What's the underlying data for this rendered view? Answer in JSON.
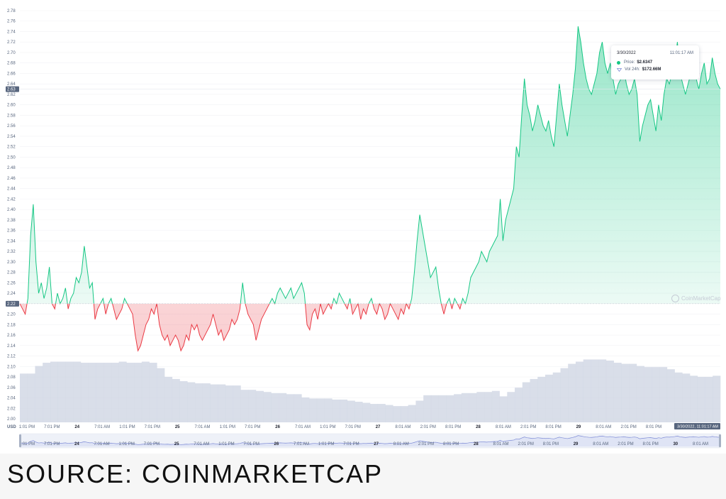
{
  "chart_data": {
    "type": "area",
    "title": "",
    "ylabel": "",
    "currency_label": "USD",
    "ylim": [
      2.0,
      2.78
    ],
    "y_ticks": [
      2.0,
      2.02,
      2.04,
      2.06,
      2.08,
      2.1,
      2.12,
      2.14,
      2.16,
      2.18,
      2.2,
      2.22,
      2.24,
      2.26,
      2.28,
      2.3,
      2.32,
      2.34,
      2.36,
      2.38,
      2.4,
      2.42,
      2.44,
      2.46,
      2.48,
      2.5,
      2.52,
      2.54,
      2.56,
      2.58,
      2.6,
      2.62,
      2.64,
      2.66,
      2.68,
      2.7,
      2.72,
      2.74,
      2.76,
      2.78
    ],
    "baseline_value": 2.22,
    "current_value": 2.63,
    "baseline_label": "2.22",
    "current_label": "2.63",
    "x_ticks": [
      "1:01 PM",
      "7:01 PM",
      "24",
      "7:01 AM",
      "1:01 PM",
      "7:01 PM",
      "25",
      "7:01 AM",
      "1:01 PM",
      "7:01 PM",
      "26",
      "7:01 AM",
      "1:01 PM",
      "7:01 PM",
      "27",
      "8:01 AM",
      "2:01 PM",
      "8:01 PM",
      "28",
      "8:01 AM",
      "2:01 PM",
      "8:01 PM",
      "29",
      "8:01 AM",
      "2:01 PM",
      "8:01 PM"
    ],
    "nav_ticks": [
      "1:01 PM",
      "7:01 PM",
      "24",
      "7:01 AM",
      "1:01 PM",
      "7:01 PM",
      "25",
      "7:01 AM",
      "1:01 PM",
      "7:01 PM",
      "26",
      "7:01 AM",
      "1:01 PM",
      "7:01 PM",
      "27",
      "8:01 AM",
      "2:01 PM",
      "8:01 PM",
      "28",
      "8:01 AM",
      "2:01 PM",
      "8:01 PM",
      "29",
      "8:01 AM",
      "2:01 PM",
      "8:01 PM",
      "30",
      "8:01 AM"
    ],
    "current_time_label": "3/30/2022, 11:01:17 AM",
    "colors": {
      "up": "#16c784",
      "down": "#ea3943",
      "volume": "#cfd6e4",
      "navigator_line": "#7d8ad6"
    },
    "series": [
      {
        "values": [
          2.22,
          2.21,
          2.2,
          2.23,
          2.35,
          2.41,
          2.3,
          2.24,
          2.26,
          2.23,
          2.25,
          2.29,
          2.22,
          2.21,
          2.24,
          2.22,
          2.23,
          2.25,
          2.21,
          2.23,
          2.24,
          2.27,
          2.26,
          2.28,
          2.33,
          2.29,
          2.25,
          2.26,
          2.19,
          2.21,
          2.22,
          2.23,
          2.2,
          2.22,
          2.23,
          2.21,
          2.19,
          2.2,
          2.21,
          2.23,
          2.22,
          2.21,
          2.2,
          2.16,
          2.13,
          2.14,
          2.16,
          2.18,
          2.19,
          2.21,
          2.2,
          2.22,
          2.18,
          2.16,
          2.15,
          2.16,
          2.14,
          2.15,
          2.16,
          2.15,
          2.13,
          2.14,
          2.16,
          2.15,
          2.18,
          2.17,
          2.18,
          2.16,
          2.15,
          2.16,
          2.17,
          2.18,
          2.2,
          2.18,
          2.16,
          2.17,
          2.15,
          2.16,
          2.17,
          2.19,
          2.18,
          2.19,
          2.21,
          2.26,
          2.22,
          2.2,
          2.19,
          2.18,
          2.15,
          2.17,
          2.19,
          2.2,
          2.21,
          2.22,
          2.23,
          2.22,
          2.24,
          2.25,
          2.24,
          2.23,
          2.24,
          2.25,
          2.23,
          2.24,
          2.25,
          2.26,
          2.24,
          2.18,
          2.17,
          2.2,
          2.21,
          2.19,
          2.22,
          2.2,
          2.21,
          2.22,
          2.21,
          2.23,
          2.22,
          2.24,
          2.23,
          2.22,
          2.21,
          2.23,
          2.2,
          2.21,
          2.22,
          2.19,
          2.21,
          2.2,
          2.22,
          2.23,
          2.21,
          2.2,
          2.22,
          2.21,
          2.19,
          2.2,
          2.22,
          2.21,
          2.2,
          2.19,
          2.21,
          2.2,
          2.22,
          2.21,
          2.23,
          2.28,
          2.34,
          2.39,
          2.36,
          2.33,
          2.3,
          2.27,
          2.28,
          2.29,
          2.25,
          2.22,
          2.2,
          2.22,
          2.23,
          2.21,
          2.23,
          2.22,
          2.21,
          2.23,
          2.22,
          2.24,
          2.27,
          2.28,
          2.29,
          2.3,
          2.32,
          2.31,
          2.3,
          2.32,
          2.33,
          2.34,
          2.35,
          2.42,
          2.34,
          2.38,
          2.4,
          2.42,
          2.44,
          2.52,
          2.5,
          2.58,
          2.65,
          2.6,
          2.58,
          2.55,
          2.57,
          2.6,
          2.58,
          2.56,
          2.55,
          2.57,
          2.54,
          2.52,
          2.58,
          2.64,
          2.6,
          2.57,
          2.54,
          2.58,
          2.62,
          2.67,
          2.75,
          2.72,
          2.68,
          2.65,
          2.63,
          2.62,
          2.64,
          2.66,
          2.7,
          2.72,
          2.68,
          2.66,
          2.68,
          2.65,
          2.62,
          2.64,
          2.65,
          2.67,
          2.64,
          2.62,
          2.63,
          2.65,
          2.62,
          2.53,
          2.56,
          2.58,
          2.6,
          2.61,
          2.58,
          2.55,
          2.6,
          2.57,
          2.62,
          2.65,
          2.64,
          2.66,
          2.68,
          2.72,
          2.66,
          2.64,
          2.62,
          2.64,
          2.66,
          2.67,
          2.65,
          2.63,
          2.66,
          2.68,
          2.64,
          2.65,
          2.69,
          2.66,
          2.64,
          2.63
        ]
      }
    ],
    "volume": [
      0.45,
      0.45,
      0.52,
      0.55,
      0.56,
      0.56,
      0.56,
      0.56,
      0.55,
      0.55,
      0.55,
      0.55,
      0.55,
      0.56,
      0.55,
      0.55,
      0.56,
      0.55,
      0.5,
      0.42,
      0.4,
      0.38,
      0.37,
      0.36,
      0.36,
      0.35,
      0.35,
      0.34,
      0.34,
      0.3,
      0.3,
      0.29,
      0.28,
      0.27,
      0.27,
      0.26,
      0.26,
      0.23,
      0.22,
      0.22,
      0.22,
      0.21,
      0.21,
      0.2,
      0.19,
      0.18,
      0.17,
      0.17,
      0.16,
      0.15,
      0.15,
      0.16,
      0.2,
      0.25,
      0.25,
      0.25,
      0.25,
      0.26,
      0.27,
      0.27,
      0.28,
      0.28,
      0.29,
      0.24,
      0.28,
      0.32,
      0.37,
      0.4,
      0.42,
      0.44,
      0.46,
      0.5,
      0.54,
      0.56,
      0.58,
      0.58,
      0.58,
      0.57,
      0.55,
      0.54,
      0.54,
      0.52,
      0.51,
      0.51,
      0.51,
      0.49,
      0.46,
      0.45,
      0.43,
      0.42,
      0.42,
      0.43
    ]
  },
  "tooltip": {
    "date": "3/30/2022",
    "time": "11:01:17 AM",
    "price_label": "Price:",
    "price_value": "$2.6347",
    "vol_label": "Vol 24h:",
    "vol_value": "$172.66M"
  },
  "watermark": "CoinMarketCap",
  "source": "SOURCE: COINMARKETCAP"
}
